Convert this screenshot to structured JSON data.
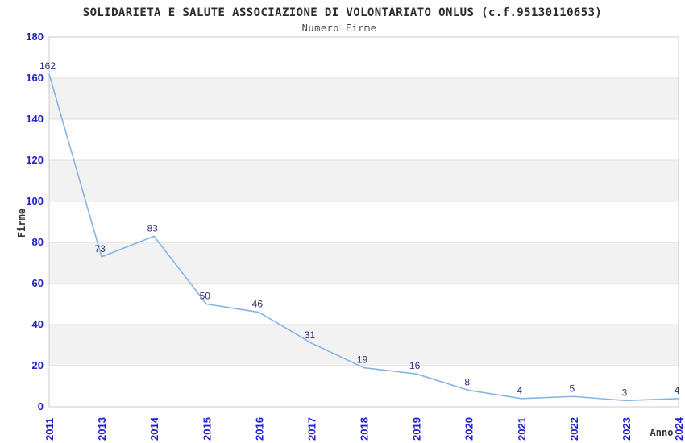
{
  "chart_data": {
    "type": "line",
    "title": "SOLIDARIETA E SALUTE ASSOCIAZIONE DI VOLONTARIATO ONLUS (c.f.95130110653)",
    "subtitle": "Numero Firme",
    "xlabel": "Anno",
    "ylabel": "Firme",
    "categories": [
      "2011",
      "2013",
      "2014",
      "2015",
      "2016",
      "2017",
      "2018",
      "2019",
      "2020",
      "2021",
      "2022",
      "2023",
      "2024"
    ],
    "values": [
      162,
      73,
      83,
      50,
      46,
      31,
      19,
      16,
      8,
      4,
      5,
      3,
      4
    ],
    "point_labels": [
      "162",
      "73",
      "83",
      "50",
      "46",
      "31",
      "19",
      "16",
      "8",
      "4",
      "5",
      "3",
      "4"
    ],
    "y_tick_labels": [
      "0",
      "20",
      "40",
      "60",
      "80",
      "100",
      "120",
      "140",
      "160",
      "180"
    ],
    "ylim": [
      0,
      180
    ],
    "ytick_step": 20,
    "grid": "horizontal-alternating-bands",
    "legend": "none",
    "x_tick_rotation": -90,
    "colors": {
      "line": "#85b4e8",
      "tick_label": "#2222cc",
      "point_label": "#31317d",
      "band": "#f2f2f2",
      "grid_line": "#dddddd",
      "plot_border": "#cccccc",
      "title": "#2b2b2b",
      "subtitle": "#4a4a4a",
      "axis_title": "#333333",
      "background": "#ffffff"
    }
  }
}
